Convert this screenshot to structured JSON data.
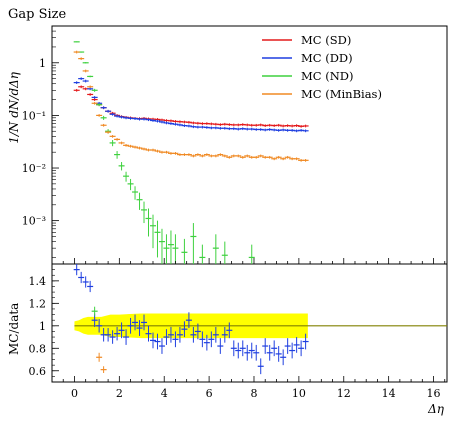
{
  "chart_data": {
    "type": "scatter",
    "title": "Gap Size",
    "xlabel": "Δη",
    "ylabel_main": "1/N dN/dΔη",
    "ylabel_ratio": "MC/data",
    "xlim": [
      -1,
      16.6
    ],
    "ylim_main_log": [
      0.00015,
      5
    ],
    "ylim_ratio": [
      0.5,
      1.55
    ],
    "x_ticks": [
      "0",
      "2",
      "4",
      "6",
      "8",
      "10",
      "12",
      "14",
      "16"
    ],
    "y_ticks_main": [
      "1",
      "10⁻¹",
      "10⁻²",
      "10⁻³"
    ],
    "y_ticks_ratio": [
      "0.6",
      "0.8",
      "1",
      "1.2",
      "1.4"
    ],
    "log_scale_y_main": true,
    "legend_position": "top-right",
    "colors": {
      "SD": "#e41a1c",
      "DD": "#1f3fe0",
      "ND": "#3fd13f",
      "MinBias": "#f08a24",
      "band": "#ffff00",
      "ref_line": "#808000"
    },
    "series": [
      {
        "name": "MC (SD)",
        "key": "SD",
        "x": [
          0.1,
          0.3,
          0.5,
          0.7,
          0.9,
          1.1,
          1.3,
          1.5,
          1.7,
          1.9,
          2.1,
          2.3,
          2.5,
          2.7,
          2.9,
          3.1,
          3.3,
          3.5,
          3.7,
          3.9,
          4.1,
          4.3,
          4.5,
          4.7,
          4.9,
          5.1,
          5.3,
          5.5,
          5.7,
          5.9,
          6.1,
          6.3,
          6.5,
          6.7,
          6.9,
          7.1,
          7.3,
          7.5,
          7.7,
          7.9,
          8.1,
          8.3,
          8.5,
          8.7,
          8.9,
          9.1,
          9.3,
          9.5,
          9.7,
          9.9,
          10.1,
          10.3
        ],
        "y": [
          0.3,
          0.35,
          0.32,
          0.25,
          0.2,
          0.16,
          0.14,
          0.12,
          0.11,
          0.1,
          0.095,
          0.092,
          0.09,
          0.088,
          0.087,
          0.088,
          0.086,
          0.085,
          0.084,
          0.082,
          0.08,
          0.079,
          0.077,
          0.076,
          0.075,
          0.074,
          0.072,
          0.071,
          0.07,
          0.07,
          0.069,
          0.068,
          0.067,
          0.068,
          0.067,
          0.066,
          0.066,
          0.067,
          0.066,
          0.065,
          0.065,
          0.066,
          0.064,
          0.065,
          0.064,
          0.065,
          0.063,
          0.064,
          0.063,
          0.064,
          0.062,
          0.063
        ]
      },
      {
        "name": "MC (DD)",
        "key": "DD",
        "x": [
          0.1,
          0.3,
          0.5,
          0.7,
          0.9,
          1.1,
          1.3,
          1.5,
          1.7,
          1.9,
          2.1,
          2.3,
          2.5,
          2.7,
          2.9,
          3.1,
          3.3,
          3.5,
          3.7,
          3.9,
          4.1,
          4.3,
          4.5,
          4.7,
          4.9,
          5.1,
          5.3,
          5.5,
          5.7,
          5.9,
          6.1,
          6.3,
          6.5,
          6.7,
          6.9,
          7.1,
          7.3,
          7.5,
          7.7,
          7.9,
          8.1,
          8.3,
          8.5,
          8.7,
          8.9,
          9.1,
          9.3,
          9.5,
          9.7,
          9.9,
          10.1,
          10.3
        ],
        "y": [
          0.42,
          0.5,
          0.45,
          0.32,
          0.22,
          0.17,
          0.14,
          0.12,
          0.105,
          0.097,
          0.093,
          0.09,
          0.088,
          0.087,
          0.085,
          0.085,
          0.083,
          0.08,
          0.078,
          0.075,
          0.072,
          0.07,
          0.068,
          0.066,
          0.064,
          0.063,
          0.061,
          0.06,
          0.06,
          0.059,
          0.058,
          0.058,
          0.057,
          0.057,
          0.056,
          0.056,
          0.055,
          0.056,
          0.055,
          0.055,
          0.054,
          0.054,
          0.053,
          0.054,
          0.053,
          0.052,
          0.053,
          0.052,
          0.052,
          0.051,
          0.052,
          0.051
        ]
      },
      {
        "name": "MC (ND)",
        "key": "ND",
        "x": [
          0.1,
          0.3,
          0.5,
          0.7,
          0.9,
          1.1,
          1.3,
          1.5,
          1.7,
          1.9,
          2.1,
          2.3,
          2.5,
          2.7,
          2.9,
          3.1,
          3.3,
          3.5,
          3.7,
          3.9,
          4.1,
          4.3,
          4.5,
          4.9,
          5.3,
          5.7,
          6.3,
          6.7,
          7.9
        ],
        "y": [
          2.5,
          1.6,
          1.0,
          0.55,
          0.3,
          0.16,
          0.09,
          0.05,
          0.03,
          0.018,
          0.011,
          0.007,
          0.005,
          0.0035,
          0.0025,
          0.0016,
          0.0011,
          0.0008,
          0.0006,
          0.0004,
          0.0003,
          0.00035,
          0.0003,
          0.00025,
          0.0005,
          0.0002,
          0.0003,
          0.00022,
          0.0002
        ],
        "yerr": [
          0.05,
          0.04,
          0.03,
          0.02,
          0.02,
          0.01,
          0.008,
          0.005,
          0.004,
          0.003,
          0.002,
          0.0015,
          0.0012,
          0.001,
          0.0009,
          0.0007,
          0.0006,
          0.0005,
          0.0004,
          0.0003,
          0.00025,
          0.0003,
          0.00025,
          0.0002,
          0.0004,
          0.00015,
          0.00025,
          0.00018,
          0.00015
        ]
      },
      {
        "name": "MC (MinBias)",
        "key": "MinBias",
        "x": [
          0.1,
          0.3,
          0.5,
          0.7,
          0.9,
          1.1,
          1.3,
          1.5,
          1.7,
          1.9,
          2.1,
          2.3,
          2.5,
          2.7,
          2.9,
          3.1,
          3.3,
          3.5,
          3.7,
          3.9,
          4.1,
          4.3,
          4.5,
          4.7,
          4.9,
          5.1,
          5.3,
          5.5,
          5.7,
          5.9,
          6.1,
          6.3,
          6.5,
          6.7,
          6.9,
          7.1,
          7.3,
          7.5,
          7.7,
          7.9,
          8.1,
          8.3,
          8.5,
          8.7,
          8.9,
          9.1,
          9.3,
          9.5,
          9.7,
          9.9,
          10.1,
          10.3
        ],
        "y": [
          1.6,
          1.2,
          0.7,
          0.35,
          0.17,
          0.1,
          0.065,
          0.048,
          0.04,
          0.035,
          0.03,
          0.027,
          0.026,
          0.025,
          0.024,
          0.023,
          0.022,
          0.022,
          0.021,
          0.02,
          0.02,
          0.019,
          0.019,
          0.018,
          0.018,
          0.018,
          0.017,
          0.018,
          0.017,
          0.018,
          0.017,
          0.017,
          0.018,
          0.017,
          0.016,
          0.017,
          0.017,
          0.016,
          0.017,
          0.016,
          0.016,
          0.017,
          0.016,
          0.016,
          0.015,
          0.016,
          0.015,
          0.016,
          0.015,
          0.015,
          0.014,
          0.014
        ]
      }
    ],
    "ratio_series": {
      "name": "MC (DD)",
      "x": [
        0.1,
        0.3,
        0.5,
        0.7,
        0.9,
        1.1,
        1.3,
        1.5,
        1.7,
        1.9,
        2.1,
        2.3,
        2.5,
        2.7,
        2.9,
        3.1,
        3.3,
        3.5,
        3.7,
        3.9,
        4.1,
        4.3,
        4.5,
        4.7,
        4.9,
        5.1,
        5.3,
        5.5,
        5.7,
        5.9,
        6.1,
        6.3,
        6.5,
        6.7,
        6.9,
        7.1,
        7.3,
        7.5,
        7.7,
        7.9,
        8.1,
        8.3,
        8.5,
        8.7,
        8.9,
        9.1,
        9.3,
        9.5,
        9.7,
        9.9,
        10.1,
        10.3
      ],
      "y": [
        1.5,
        1.43,
        1.39,
        1.35,
        1.05,
        1.0,
        0.92,
        0.92,
        0.9,
        0.93,
        0.96,
        0.9,
        1.0,
        1.03,
        0.98,
        1.03,
        0.93,
        0.87,
        0.86,
        0.82,
        0.9,
        0.92,
        0.88,
        0.92,
        0.97,
        1.05,
        0.92,
        0.95,
        0.88,
        0.85,
        0.88,
        0.92,
        0.82,
        0.92,
        0.96,
        0.8,
        0.78,
        0.8,
        0.76,
        0.78,
        0.76,
        0.64,
        0.82,
        0.76,
        0.8,
        0.75,
        0.72,
        0.82,
        0.78,
        0.83,
        0.8,
        0.86
      ],
      "yerr": [
        0.05,
        0.05,
        0.05,
        0.05,
        0.06,
        0.06,
        0.06,
        0.06,
        0.06,
        0.06,
        0.07,
        0.07,
        0.07,
        0.07,
        0.07,
        0.07,
        0.07,
        0.07,
        0.07,
        0.07,
        0.07,
        0.07,
        0.07,
        0.07,
        0.07,
        0.07,
        0.07,
        0.07,
        0.07,
        0.07,
        0.07,
        0.07,
        0.07,
        0.07,
        0.07,
        0.07,
        0.07,
        0.07,
        0.07,
        0.07,
        0.07,
        0.07,
        0.07,
        0.07,
        0.07,
        0.07,
        0.07,
        0.07,
        0.07,
        0.07,
        0.07,
        0.07
      ]
    },
    "ratio_extra_points": [
      {
        "key": "ND",
        "x": [
          0.9
        ],
        "y": [
          1.13
        ],
        "yerr": [
          0.04
        ]
      },
      {
        "key": "MinBias",
        "x": [
          1.1,
          1.3
        ],
        "y": [
          0.72,
          0.61
        ],
        "yerr": [
          0.04,
          0.03
        ]
      }
    ],
    "data_band": {
      "x": [
        0.0,
        0.2,
        0.4,
        0.6,
        0.8,
        1.0,
        1.2,
        1.4,
        1.6,
        1.8,
        2.0,
        3.0,
        4.0,
        5.0,
        6.0,
        7.0,
        8.0,
        9.0,
        10.0,
        10.4
      ],
      "lo": [
        0.96,
        0.95,
        0.93,
        0.92,
        0.92,
        0.92,
        0.92,
        0.91,
        0.9,
        0.9,
        0.9,
        0.89,
        0.89,
        0.89,
        0.89,
        0.89,
        0.89,
        0.89,
        0.89,
        0.89
      ],
      "hi": [
        1.04,
        1.05,
        1.07,
        1.08,
        1.08,
        1.08,
        1.08,
        1.09,
        1.1,
        1.1,
        1.1,
        1.11,
        1.11,
        1.11,
        1.11,
        1.11,
        1.11,
        1.11,
        1.11,
        1.11
      ]
    }
  }
}
